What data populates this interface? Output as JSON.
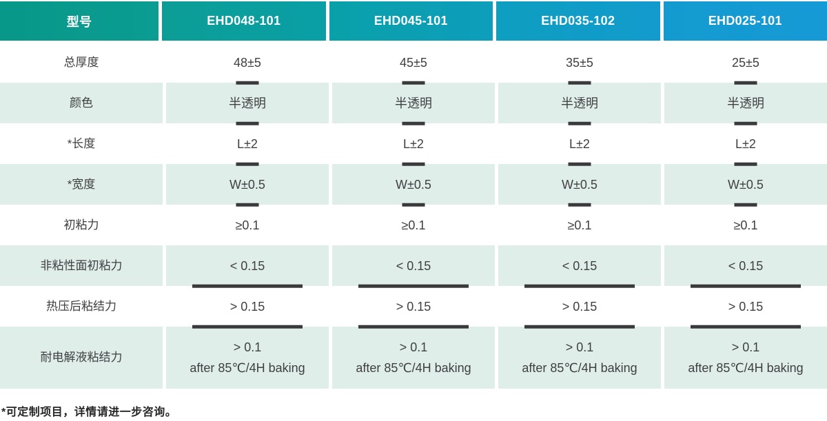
{
  "colors": {
    "header_cell_gradients": [
      {
        "from": "#089889",
        "to": "#0b9c92"
      },
      {
        "from": "#0b9d95",
        "to": "#0a9fa6"
      },
      {
        "from": "#0aa0a9",
        "to": "#0d9ebc"
      },
      {
        "from": "#0e9ec0",
        "to": "#129bcd"
      },
      {
        "from": "#139bcf",
        "to": "#169ad6"
      }
    ],
    "row_green_bg": "#dfeee9",
    "row_white_bg": "#ffffff",
    "marker_color": "#3a3a3c",
    "header_text": "#ffffff",
    "body_text": "#3f3f41"
  },
  "table": {
    "header": {
      "cells": [
        "型号",
        "EHD048-101",
        "EHD045-101",
        "EHD035-102",
        "EHD025-101"
      ]
    },
    "rows": [
      {
        "label": "总厚度",
        "values": [
          "48±5",
          "45±5",
          "35±5",
          "25±5"
        ],
        "tone": "white",
        "marker": "small"
      },
      {
        "label": "颜色",
        "values": [
          "半透明",
          "半透明",
          "半透明",
          "半透明"
        ],
        "tone": "green",
        "marker": "small"
      },
      {
        "label": "*长度",
        "values": [
          "L±2",
          "L±2",
          "L±2",
          "L±2"
        ],
        "tone": "white",
        "marker": "small"
      },
      {
        "label": "*宽度",
        "values": [
          "W±0.5",
          "W±0.5",
          "W±0.5",
          "W±0.5"
        ],
        "tone": "green",
        "marker": "small"
      },
      {
        "label": "初粘力",
        "values": [
          "≥0.1",
          "≥0.1",
          "≥0.1",
          "≥0.1"
        ],
        "tone": "white",
        "marker": "none"
      },
      {
        "label": "非粘性面初粘力",
        "values": [
          "< 0.15",
          "< 0.15",
          "< 0.15",
          "< 0.15"
        ],
        "tone": "green",
        "marker": "long"
      },
      {
        "label": "热压后粘结力",
        "values": [
          "> 0.15",
          "> 0.15",
          "> 0.15",
          "> 0.15"
        ],
        "tone": "white",
        "marker": "long"
      },
      {
        "label": "耐电解液粘结力",
        "values": [
          "> 0.1",
          "> 0.1",
          "> 0.1",
          "> 0.1"
        ],
        "values_line2": [
          "after 85℃/4H baking",
          "after 85℃/4H baking",
          "after 85℃/4H baking",
          "after 85℃/4H baking"
        ],
        "tone": "green",
        "marker": "none",
        "tall": true
      }
    ]
  },
  "footnote": "*可定制项目，详情请进一步咨询。"
}
